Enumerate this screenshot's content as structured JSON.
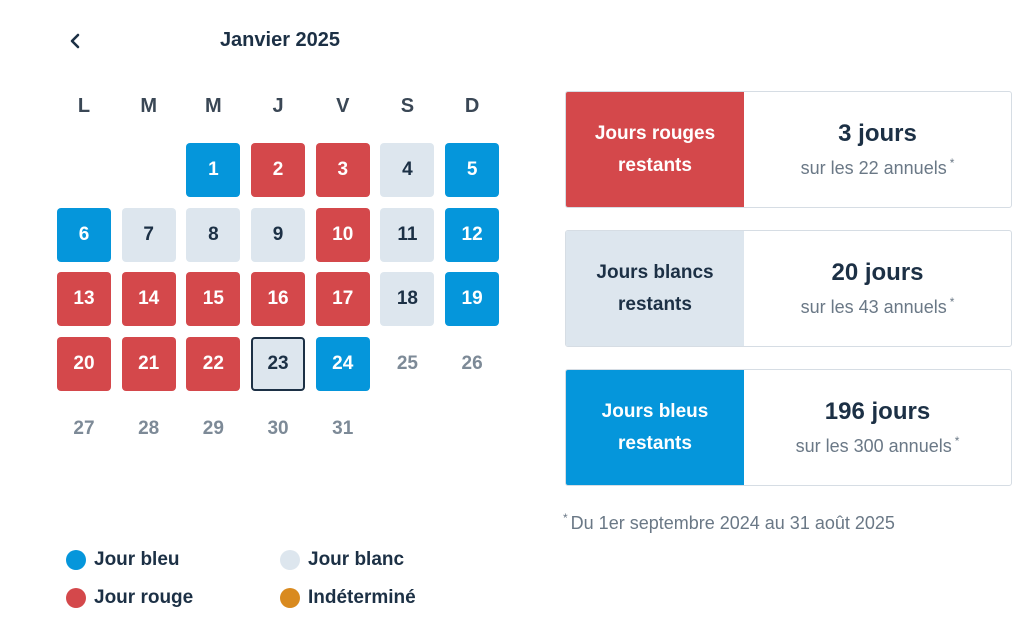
{
  "calendar": {
    "month_title": "Janvier 2025",
    "weekdays": [
      "L",
      "M",
      "M",
      "J",
      "V",
      "S",
      "D"
    ],
    "weeks": [
      [
        {
          "day": "",
          "type": "none"
        },
        {
          "day": "",
          "type": "none"
        },
        {
          "day": "1",
          "type": "bleu"
        },
        {
          "day": "2",
          "type": "rouge"
        },
        {
          "day": "3",
          "type": "rouge"
        },
        {
          "day": "4",
          "type": "blanc"
        },
        {
          "day": "5",
          "type": "bleu"
        }
      ],
      [
        {
          "day": "6",
          "type": "bleu"
        },
        {
          "day": "7",
          "type": "blanc"
        },
        {
          "day": "8",
          "type": "blanc"
        },
        {
          "day": "9",
          "type": "blanc"
        },
        {
          "day": "10",
          "type": "rouge"
        },
        {
          "day": "11",
          "type": "blanc"
        },
        {
          "day": "12",
          "type": "bleu"
        }
      ],
      [
        {
          "day": "13",
          "type": "rouge"
        },
        {
          "day": "14",
          "type": "rouge"
        },
        {
          "day": "15",
          "type": "rouge"
        },
        {
          "day": "16",
          "type": "rouge"
        },
        {
          "day": "17",
          "type": "rouge"
        },
        {
          "day": "18",
          "type": "blanc"
        },
        {
          "day": "19",
          "type": "bleu"
        }
      ],
      [
        {
          "day": "20",
          "type": "rouge"
        },
        {
          "day": "21",
          "type": "rouge"
        },
        {
          "day": "22",
          "type": "rouge"
        },
        {
          "day": "23",
          "type": "today"
        },
        {
          "day": "24",
          "type": "bleu"
        },
        {
          "day": "25",
          "type": "empty"
        },
        {
          "day": "26",
          "type": "empty"
        }
      ],
      [
        {
          "day": "27",
          "type": "empty"
        },
        {
          "day": "28",
          "type": "empty"
        },
        {
          "day": "29",
          "type": "empty"
        },
        {
          "day": "30",
          "type": "empty"
        },
        {
          "day": "31",
          "type": "empty"
        },
        {
          "day": "",
          "type": "none"
        },
        {
          "day": "",
          "type": "none"
        }
      ]
    ]
  },
  "legend": [
    {
      "label": "Jour bleu",
      "color": "#0596db"
    },
    {
      "label": "Jour blanc",
      "color": "#dde6ee"
    },
    {
      "label": "Jour rouge",
      "color": "#d4484b"
    },
    {
      "label": "Indéterminé",
      "color": "#d98a1f"
    }
  ],
  "cards": [
    {
      "type": "rouge",
      "label_line1": "Jours rouges",
      "label_line2": "restants",
      "count": "3 jours",
      "sub": "sur les 22 annuels",
      "asterisk": "*"
    },
    {
      "type": "blanc",
      "label_line1": "Jours blancs",
      "label_line2": "restants",
      "count": "20 jours",
      "sub": "sur les 43 annuels",
      "asterisk": "*"
    },
    {
      "type": "bleu",
      "label_line1": "Jours bleus",
      "label_line2": "restants",
      "count": "196 jours",
      "sub": "sur les 300 annuels",
      "asterisk": "*"
    }
  ],
  "footnote": {
    "asterisk": "*",
    "text": "Du 1er septembre 2024 au 31 août 2025"
  },
  "icons": {
    "prev": "chevron-left-icon"
  }
}
